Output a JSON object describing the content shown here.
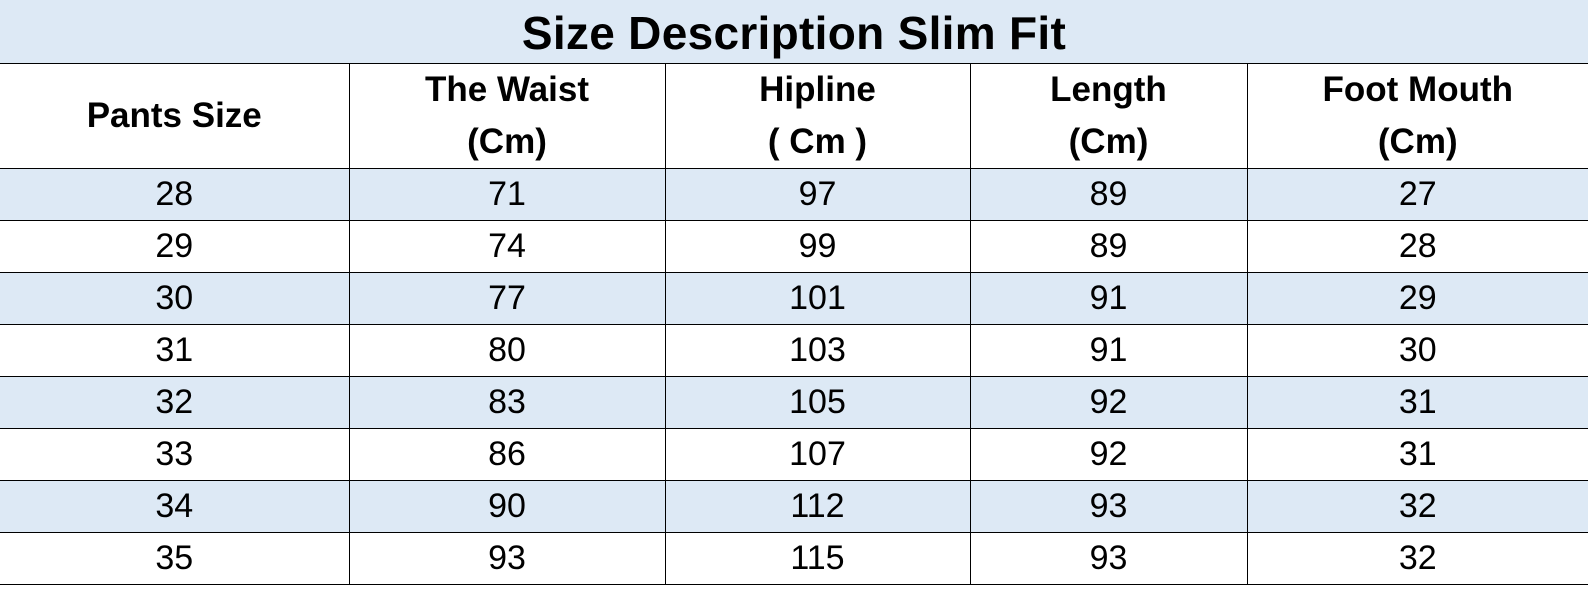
{
  "title": "Size Description Slim Fit",
  "columns": [
    {
      "line1": "Pants Size",
      "line2": ""
    },
    {
      "line1": "The Waist",
      "line2": "(Cm)"
    },
    {
      "line1": "Hipline",
      "line2": "( Cm )"
    },
    {
      "line1": "Length",
      "line2": "(Cm)"
    },
    {
      "line1": "Foot Mouth",
      "line2": "(Cm)"
    }
  ],
  "rows": [
    [
      "28",
      "71",
      "97",
      "89",
      "27"
    ],
    [
      "29",
      "74",
      "99",
      "89",
      "28"
    ],
    [
      "30",
      "77",
      "101",
      "91",
      "29"
    ],
    [
      "31",
      "80",
      "103",
      "91",
      "30"
    ],
    [
      "32",
      "83",
      "105",
      "92",
      "31"
    ],
    [
      "33",
      "86",
      "107",
      "92",
      "31"
    ],
    [
      "34",
      "90",
      "112",
      "93",
      "32"
    ],
    [
      "35",
      "93",
      "115",
      "93",
      "32"
    ]
  ],
  "colors": {
    "band": "#dde9f5",
    "grid": "#000000",
    "background": "#ffffff"
  }
}
